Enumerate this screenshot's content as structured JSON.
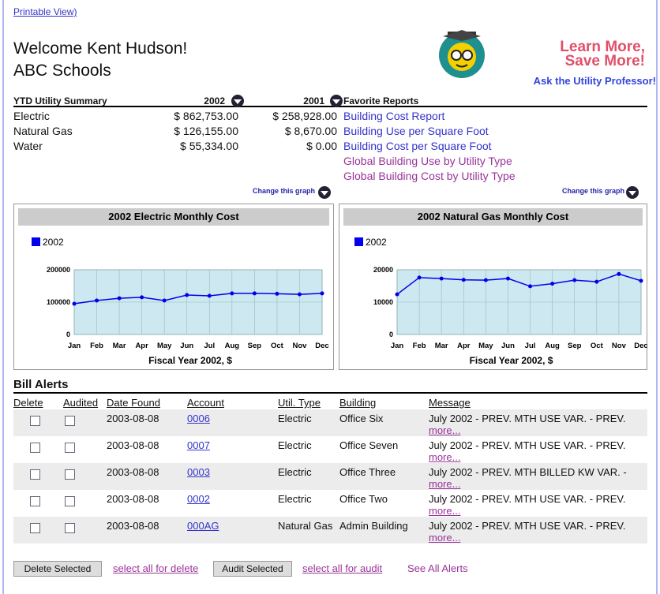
{
  "header": {
    "printable_view": "Printable View)",
    "welcome": "Welcome Kent Hudson!",
    "organization": "ABC Schools",
    "promo_line1": "Learn More,",
    "promo_line2": "Save More!",
    "promo_link": "Ask the Utility Professor!"
  },
  "summary": {
    "headers": [
      "YTD Utility Summary",
      "2002",
      "2001"
    ],
    "rows": [
      [
        "Electric",
        "$ 862,753.00",
        "$ 258,928.00"
      ],
      [
        "Natural Gas",
        "$ 126,155.00",
        "$ 8,670.00"
      ],
      [
        "Water",
        "$ 55,334.00",
        "$ 0.00"
      ]
    ]
  },
  "favorites": {
    "title": "Favorite Reports",
    "links": [
      "Building Cost Report",
      "Building Use per Square Foot",
      "Building Cost per Square Foot",
      "Global Building Use by Utility Type",
      "Global Building Cost by Utility Type"
    ]
  },
  "change_graph": [
    "Change this graph",
    "Change this graph"
  ],
  "chart_data": [
    {
      "type": "line",
      "title": "2002 Electric Monthly Cost",
      "xlabel": "Fiscal Year 2002, $",
      "categories": [
        "Jan",
        "Feb",
        "Mar",
        "Apr",
        "May",
        "Jun",
        "Jul",
        "Aug",
        "Sep",
        "Oct",
        "Nov",
        "Dec"
      ],
      "series": [
        {
          "name": "2002",
          "color": "#0000ee",
          "values": [
            95000,
            105000,
            112000,
            115000,
            105000,
            122000,
            119500,
            127000,
            127000,
            126000,
            124000,
            127000
          ]
        }
      ],
      "ylim": [
        0,
        200000
      ],
      "yticks": [
        0,
        100000,
        200000
      ],
      "grid": true
    },
    {
      "type": "line",
      "title": "2002 Natural Gas Monthly Cost",
      "xlabel": "Fiscal Year 2002, $",
      "categories": [
        "Jan",
        "Feb",
        "Mar",
        "Apr",
        "May",
        "Jun",
        "Jul",
        "Aug",
        "Sep",
        "Oct",
        "Nov",
        "Dec"
      ],
      "series": [
        {
          "name": "2002",
          "color": "#0000ee",
          "values": [
            12400,
            17600,
            17300,
            16900,
            16800,
            17300,
            14900,
            15700,
            16800,
            16300,
            18700,
            16600
          ]
        }
      ],
      "ylim": [
        0,
        20000
      ],
      "yticks": [
        0,
        10000,
        20000
      ],
      "grid": true
    }
  ],
  "alerts": {
    "title": "Bill Alerts",
    "columns": [
      "Delete",
      "Audited",
      "Date Found",
      "Account",
      "Util. Type",
      "Building",
      "Message"
    ],
    "rows": [
      {
        "date": "2003-08-08",
        "account": "0006",
        "util_type": "Electric",
        "building": "Office Six",
        "message": "July 2002 - PREV. MTH USE VAR. - PREV.",
        "more": "more..."
      },
      {
        "date": "2003-08-08",
        "account": "0007",
        "util_type": "Electric",
        "building": "Office Seven",
        "message": "July 2002 - PREV. MTH USE VAR. - PREV.",
        "more": "more..."
      },
      {
        "date": "2003-08-08",
        "account": "0003",
        "util_type": "Electric",
        "building": "Office Three",
        "message": "July 2002 - PREV. MTH BILLED KW VAR. -",
        "more": "more..."
      },
      {
        "date": "2003-08-08",
        "account": "0002",
        "util_type": "Electric",
        "building": "Office Two",
        "message": "July 2002 - PREV. MTH USE VAR. - PREV.",
        "more": "more..."
      },
      {
        "date": "2003-08-08",
        "account": "000AG",
        "util_type": "Natural Gas",
        "building": "Admin Building",
        "message": "July 2002 - PREV. MTH USE VAR. - PREV.",
        "more": "more..."
      }
    ]
  },
  "actions": {
    "delete_button": "Delete Selected",
    "select_delete": "select all for delete",
    "audit_button": "Audit Selected",
    "select_audit": "select all for audit",
    "see_all": "See All Alerts"
  }
}
